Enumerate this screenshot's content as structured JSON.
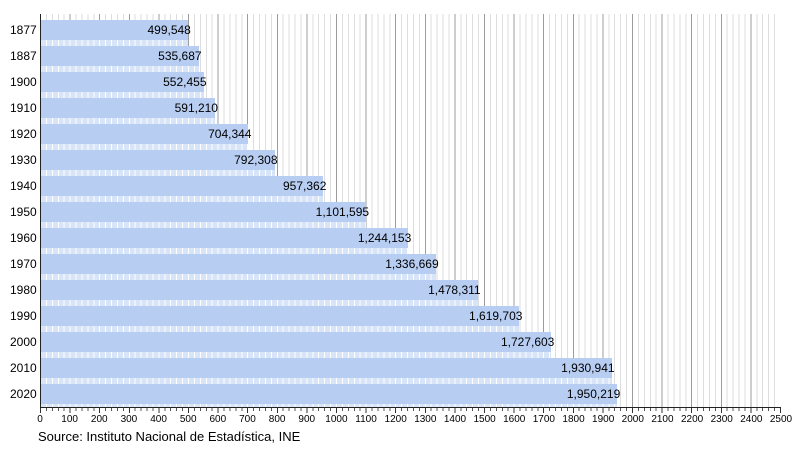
{
  "chart_data": {
    "type": "bar",
    "orientation": "horizontal",
    "title": "",
    "xlabel": "",
    "ylabel": "",
    "categories": [
      "1877",
      "1887",
      "1900",
      "1910",
      "1920",
      "1930",
      "1940",
      "1950",
      "1960",
      "1970",
      "1980",
      "1990",
      "2000",
      "2010",
      "2020"
    ],
    "values": [
      499548,
      535687,
      552455,
      591210,
      704344,
      792308,
      957362,
      1101595,
      1244153,
      1336669,
      1478311,
      1619703,
      1727603,
      1930941,
      1950219
    ],
    "value_labels": [
      "499,548",
      "535,687",
      "552,455",
      "591,210",
      "704,344",
      "792,308",
      "957,362",
      "1,101,595",
      "1,244,153",
      "1,336,669",
      "1,478,311",
      "1,619,703",
      "1,727,603",
      "1,930,941",
      "1,950,219"
    ],
    "x_axis_unit": "thousands",
    "xlim": [
      0,
      2500
    ],
    "x_tick_labels": [
      "0",
      "100",
      "200",
      "300",
      "400",
      "500",
      "600",
      "700",
      "800",
      "900",
      "1000",
      "1100",
      "1200",
      "1300",
      "1400",
      "1500",
      "1600",
      "1700",
      "1800",
      "1900",
      "2000",
      "2100",
      "2200",
      "2300",
      "2400",
      "2500"
    ],
    "x_minor_tick_step": 20,
    "grid": "vertical, minor every 20, major every 100",
    "legend": "none",
    "colors": {
      "bar": "#b7cdf2",
      "grid_minor": "#dedede",
      "grid_major": "#9c9c9c",
      "axis": "#222222",
      "text": "#000000"
    }
  },
  "source": {
    "label": "Source: Instituto Nacional de Estadística, INE"
  }
}
